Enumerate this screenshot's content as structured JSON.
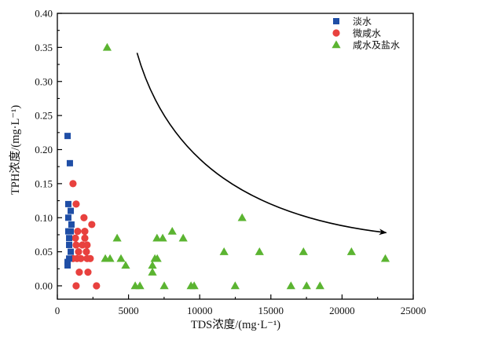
{
  "chart_data": {
    "type": "scatter",
    "title": "",
    "xlabel": "TDS浓度/(mg·L⁻¹)",
    "ylabel": "TPH浓度/(mg·L⁻¹)",
    "xlim": [
      0,
      25000
    ],
    "ylim": [
      0,
      0.4
    ],
    "xticks": [
      0,
      5000,
      10000,
      15000,
      20000,
      25000
    ],
    "xtick_labels": [
      "0",
      "5000",
      "10000",
      "15000",
      "20000",
      "25000"
    ],
    "yticks": [
      0,
      0.05,
      0.1,
      0.15,
      0.2,
      0.25,
      0.3,
      0.35,
      0.4
    ],
    "ytick_labels": [
      "0.00",
      "0.05",
      "0.10",
      "0.15",
      "0.20",
      "0.25",
      "0.30",
      "0.35",
      "0.40"
    ],
    "grid": false,
    "legend_position": "top-right",
    "annotation": {
      "type": "curved-arrow",
      "description": "trend of decreasing TPH with increasing TDS",
      "from": [
        5600,
        0.342
      ],
      "to": [
        23100,
        0.078
      ]
    },
    "series": [
      {
        "name": "淡水",
        "marker": "square",
        "color": "#1f4ea6",
        "points": [
          [
            720,
            0.22
          ],
          [
            880,
            0.18
          ],
          [
            770,
            0.12
          ],
          [
            940,
            0.11
          ],
          [
            770,
            0.1
          ],
          [
            990,
            0.09
          ],
          [
            770,
            0.08
          ],
          [
            940,
            0.08
          ],
          [
            830,
            0.07
          ],
          [
            830,
            0.06
          ],
          [
            940,
            0.05
          ],
          [
            830,
            0.04
          ],
          [
            720,
            0.035
          ],
          [
            720,
            0.03
          ]
        ]
      },
      {
        "name": "微咸水",
        "marker": "circle",
        "color": "#e8413e",
        "points": [
          [
            1100,
            0.15
          ],
          [
            1320,
            0.12
          ],
          [
            1870,
            0.1
          ],
          [
            2420,
            0.09
          ],
          [
            1430,
            0.08
          ],
          [
            1930,
            0.08
          ],
          [
            1270,
            0.07
          ],
          [
            1930,
            0.07
          ],
          [
            1320,
            0.06
          ],
          [
            1760,
            0.06
          ],
          [
            2090,
            0.06
          ],
          [
            1490,
            0.05
          ],
          [
            2040,
            0.05
          ],
          [
            1100,
            0.04
          ],
          [
            1380,
            0.04
          ],
          [
            1650,
            0.04
          ],
          [
            2090,
            0.04
          ],
          [
            2310,
            0.04
          ],
          [
            1540,
            0.02
          ],
          [
            2150,
            0.02
          ],
          [
            1320,
            0.0
          ],
          [
            2750,
            0.0
          ]
        ]
      },
      {
        "name": "咸水及盐水",
        "marker": "triangle",
        "color": "#5bb431",
        "points": [
          [
            3500,
            0.35
          ],
          [
            12980,
            0.1
          ],
          [
            8070,
            0.08
          ],
          [
            4200,
            0.07
          ],
          [
            7000,
            0.07
          ],
          [
            7400,
            0.07
          ],
          [
            8840,
            0.07
          ],
          [
            11710,
            0.05
          ],
          [
            14200,
            0.05
          ],
          [
            17290,
            0.05
          ],
          [
            20660,
            0.05
          ],
          [
            3370,
            0.04
          ],
          [
            3700,
            0.04
          ],
          [
            4470,
            0.04
          ],
          [
            6850,
            0.04
          ],
          [
            7020,
            0.04
          ],
          [
            23040,
            0.04
          ],
          [
            4800,
            0.03
          ],
          [
            6680,
            0.03
          ],
          [
            6680,
            0.02
          ],
          [
            5470,
            0.0
          ],
          [
            5800,
            0.0
          ],
          [
            7510,
            0.0
          ],
          [
            9390,
            0.0
          ],
          [
            9610,
            0.0
          ],
          [
            12490,
            0.0
          ],
          [
            16410,
            0.0
          ],
          [
            17510,
            0.0
          ],
          [
            18450,
            0.0
          ]
        ]
      }
    ]
  }
}
